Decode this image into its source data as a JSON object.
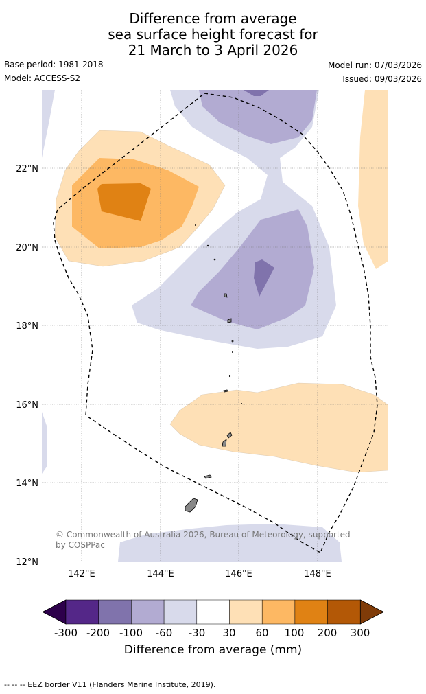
{
  "title_lines": [
    "Difference from average",
    "sea surface height forecast for",
    "21 March to 3 April 2026"
  ],
  "meta": {
    "base_period": "Base period: 1981-2018",
    "model": "Model: ACCESS-S2",
    "model_run": "Model run: 07/03/2026",
    "issued": "Issued: 09/03/2026"
  },
  "axes": {
    "lat_ticks": [
      "22°N",
      "20°N",
      "18°N",
      "16°N",
      "14°N",
      "12°N"
    ],
    "lon_ticks": [
      "142°E",
      "144°E",
      "146°E",
      "148°E"
    ]
  },
  "copyright": [
    "© Commonwealth of Australia 2026, Bureau of Meteorology, supported",
    "by COSPPac"
  ],
  "colorbar": {
    "title": "Difference from average (mm)",
    "labels": [
      "-300",
      "-200",
      "-100",
      "-60",
      "-30",
      "30",
      "60",
      "100",
      "200",
      "300"
    ],
    "colors": [
      "#2d004b",
      "#542788",
      "#8073ac",
      "#b2abd2",
      "#d8daeb",
      "#ffffff",
      "#fee0b6",
      "#fdb863",
      "#e08214",
      "#b35806",
      "#7f3b08"
    ]
  },
  "footer": "--  --  -- EEZ border V11 (Flanders Marine Institute, 2019)."
}
